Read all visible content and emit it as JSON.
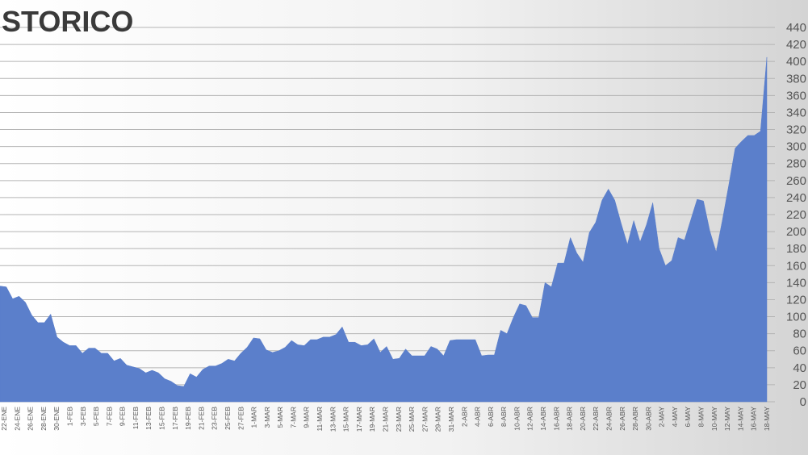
{
  "chart_data": {
    "type": "area",
    "title": "STORICO",
    "xlabel": "",
    "ylabel": "",
    "ylim": [
      0,
      440
    ],
    "yticks": [
      0,
      20,
      40,
      60,
      80,
      100,
      120,
      140,
      160,
      180,
      200,
      220,
      240,
      260,
      280,
      300,
      320,
      340,
      360,
      380,
      400,
      420,
      440
    ],
    "grid": true,
    "y_axis_position": "right",
    "color": "#5b7fcb",
    "x_tick_labels": [
      "22-ENE",
      "24-ENE",
      "26-ENE",
      "28-ENE",
      "30-ENE",
      "1-FEB",
      "3-FEB",
      "5-FEB",
      "7-FEB",
      "9-FEB",
      "11-FEB",
      "13-FEB",
      "15-FEB",
      "17-FEB",
      "19-FEB",
      "21-FEB",
      "23-FEB",
      "25-FEB",
      "27-FEB",
      "1-MAR",
      "3-MAR",
      "5-MAR",
      "7-MAR",
      "9-MAR",
      "11-MAR",
      "13-MAR",
      "15-MAR",
      "17-MAR",
      "19-MAR",
      "21-MAR",
      "23-MAR",
      "25-MAR",
      "27-MAR",
      "29-MAR",
      "31-MAR",
      "2-ABR",
      "4-ABR",
      "6-ABR",
      "8-ABR",
      "10-ABR",
      "12-ABR",
      "14-ABR",
      "16-ABR",
      "18-ABR",
      "20-ABR",
      "22-ABR",
      "24-ABR",
      "26-ABR",
      "28-ABR",
      "30-ABR",
      "2-MAY",
      "4-MAY",
      "6-MAY",
      "8-MAY",
      "10-MAY",
      "12-MAY",
      "14-MAY",
      "16-MAY",
      "18-MAY"
    ],
    "values": [
      136,
      135,
      121,
      124,
      117,
      102,
      93,
      93,
      103,
      76,
      70,
      66,
      66,
      57,
      63,
      63,
      57,
      57,
      48,
      51,
      43,
      41,
      39,
      34,
      37,
      34,
      27,
      24,
      19,
      18,
      33,
      29,
      38,
      42,
      42,
      45,
      50,
      48,
      57,
      64,
      75,
      74,
      61,
      58,
      60,
      64,
      72,
      67,
      66,
      73,
      73,
      76,
      76,
      79,
      88,
      70,
      70,
      66,
      67,
      74,
      58,
      65,
      50,
      51,
      62,
      54,
      54,
      54,
      65,
      62,
      54,
      72,
      73,
      73,
      73,
      73,
      54,
      55,
      55,
      84,
      80,
      99,
      115,
      113,
      99,
      99,
      140,
      135,
      163,
      163,
      193,
      175,
      164,
      199,
      211,
      237,
      250,
      237,
      210,
      185,
      213,
      188,
      208,
      234,
      180,
      160,
      166,
      193,
      190,
      214,
      238,
      236,
      201,
      176,
      214,
      255,
      298,
      306,
      313,
      313,
      318,
      405
    ]
  }
}
